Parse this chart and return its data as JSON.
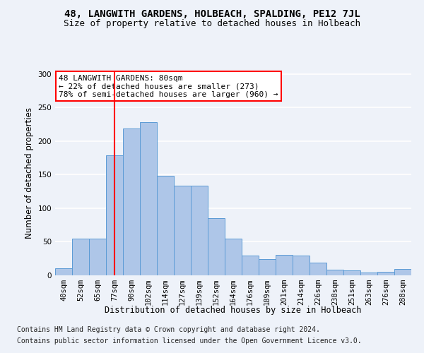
{
  "title": "48, LANGWITH GARDENS, HOLBEACH, SPALDING, PE12 7JL",
  "subtitle": "Size of property relative to detached houses in Holbeach",
  "xlabel": "Distribution of detached houses by size in Holbeach",
  "ylabel": "Number of detached properties",
  "footer_line1": "Contains HM Land Registry data © Crown copyright and database right 2024.",
  "footer_line2": "Contains public sector information licensed under the Open Government Licence v3.0.",
  "bar_labels": [
    "40sqm",
    "52sqm",
    "65sqm",
    "77sqm",
    "90sqm",
    "102sqm",
    "114sqm",
    "127sqm",
    "139sqm",
    "152sqm",
    "164sqm",
    "176sqm",
    "189sqm",
    "201sqm",
    "214sqm",
    "226sqm",
    "238sqm",
    "251sqm",
    "263sqm",
    "276sqm",
    "288sqm"
  ],
  "bar_values": [
    11,
    55,
    55,
    179,
    219,
    228,
    148,
    134,
    134,
    85,
    55,
    29,
    24,
    30,
    29,
    19,
    8,
    7,
    4,
    5,
    9
  ],
  "bar_color": "#aec6e8",
  "bar_edge_color": "#5b9bd5",
  "annotation_line1": "48 LANGWITH GARDENS: 80sqm",
  "annotation_line2": "← 22% of detached houses are smaller (273)",
  "annotation_line3": "78% of semi-detached houses are larger (960) →",
  "annotation_box_color": "white",
  "annotation_box_edge_color": "red",
  "vline_x": 3,
  "vline_color": "red",
  "ylim": [
    0,
    305
  ],
  "background_color": "#eef2f9",
  "grid_color": "white",
  "title_fontsize": 10,
  "subtitle_fontsize": 9,
  "label_fontsize": 8.5,
  "tick_fontsize": 7.5,
  "annotation_fontsize": 8,
  "footer_fontsize": 7
}
